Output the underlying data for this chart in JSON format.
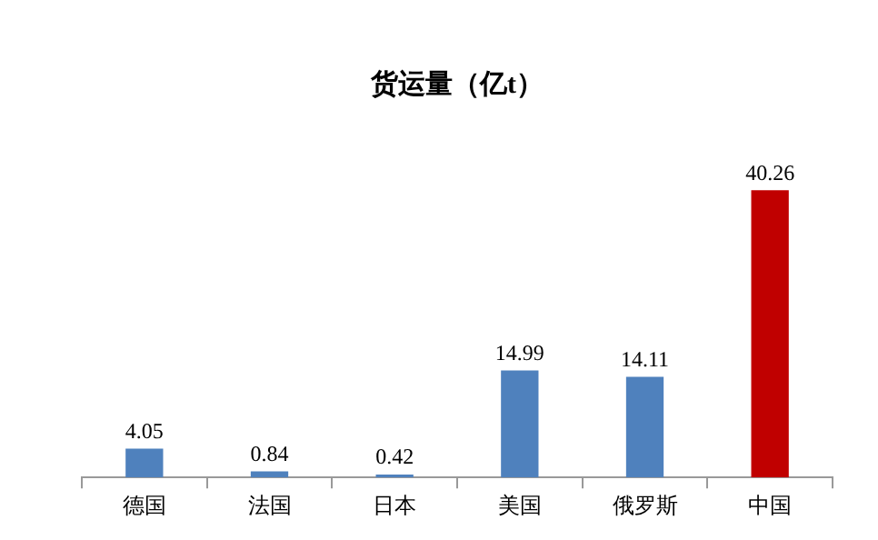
{
  "chart_data": {
    "type": "bar",
    "title": "货运量（亿t）",
    "categories": [
      "德国",
      "法国",
      "日本",
      "美国",
      "俄罗斯",
      "中国"
    ],
    "values": [
      4.05,
      0.84,
      0.42,
      14.99,
      14.11,
      40.26
    ],
    "colors": [
      "#4f81bd",
      "#4f81bd",
      "#4f81bd",
      "#4f81bd",
      "#4f81bd",
      "#c00000"
    ],
    "data_labels": true,
    "grid": false,
    "legend": false
  }
}
